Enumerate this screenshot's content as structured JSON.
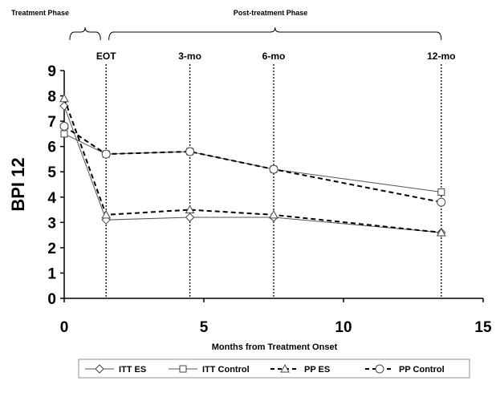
{
  "chart_data": {
    "type": "line",
    "xlabel": "Months from Treatment Onset",
    "ylabel": "BPI 12",
    "xlim": [
      0,
      15
    ],
    "ylim": [
      0,
      9
    ],
    "xticks": [
      0,
      5,
      10,
      15
    ],
    "yticks": [
      0,
      1,
      2,
      3,
      4,
      5,
      6,
      7,
      8,
      9
    ],
    "grid": false,
    "legend_position": "bottom",
    "phases": [
      {
        "label": "Treatment Phase",
        "x_start": 0.2,
        "x_end": 1.3
      },
      {
        "label": "Post-treatment Phase",
        "x_start": 1.6,
        "x_end": 13.5
      }
    ],
    "reference_lines": [
      {
        "label": "EOT",
        "x": 1.5
      },
      {
        "label": "3-mo",
        "x": 4.5
      },
      {
        "label": "6-mo",
        "x": 7.5
      },
      {
        "label": "12-mo",
        "x": 13.5
      }
    ],
    "series": [
      {
        "name": "ITT ES",
        "marker": "diamond",
        "dash": "solid",
        "x": [
          0,
          1.5,
          4.5,
          7.5,
          13.5
        ],
        "y": [
          7.6,
          3.1,
          3.2,
          3.2,
          2.6
        ]
      },
      {
        "name": "ITT Control",
        "marker": "square",
        "dash": "solid",
        "x": [
          0,
          1.5,
          4.5,
          7.5,
          13.5
        ],
        "y": [
          6.5,
          5.7,
          5.8,
          5.1,
          4.2
        ]
      },
      {
        "name": "PP ES",
        "marker": "triangle",
        "dash": "dashed",
        "x": [
          0,
          1.5,
          4.5,
          7.5,
          13.5
        ],
        "y": [
          7.9,
          3.3,
          3.5,
          3.3,
          2.6
        ]
      },
      {
        "name": "PP Control",
        "marker": "circle",
        "dash": "dashed",
        "x": [
          0,
          1.5,
          4.5,
          7.5,
          13.5
        ],
        "y": [
          6.8,
          5.7,
          5.8,
          5.1,
          3.8
        ]
      }
    ]
  }
}
